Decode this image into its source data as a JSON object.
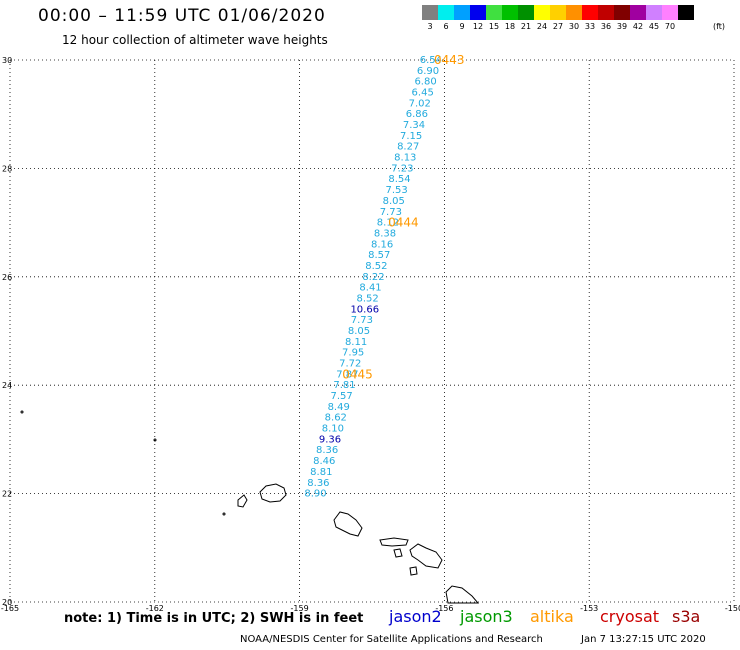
{
  "header": {
    "title": "00:00 – 11:59 UTC 01/06/2020",
    "subtitle": "12 hour collection of altimeter wave heights"
  },
  "legend": {
    "unit": "(ft)",
    "bins": [
      {
        "label": "3",
        "color": "#808080"
      },
      {
        "label": "6",
        "color": "#00eeee"
      },
      {
        "label": "9",
        "color": "#00a0ff"
      },
      {
        "label": "12",
        "color": "#0000ee"
      },
      {
        "label": "15",
        "color": "#40e040"
      },
      {
        "label": "18",
        "color": "#00c000"
      },
      {
        "label": "21",
        "color": "#009000"
      },
      {
        "label": "24",
        "color": "#ffff00"
      },
      {
        "label": "27",
        "color": "#ffd000"
      },
      {
        "label": "30",
        "color": "#ff9000"
      },
      {
        "label": "33",
        "color": "#ff0000"
      },
      {
        "label": "36",
        "color": "#c00000"
      },
      {
        "label": "39",
        "color": "#800000"
      },
      {
        "label": "42",
        "color": "#a000a0"
      },
      {
        "label": "45",
        "color": "#d080ff"
      },
      {
        "label": "70",
        "color": "#ff80ff"
      },
      {
        "label": "",
        "color": "#000000"
      }
    ]
  },
  "axes": {
    "lon_ticks": [
      "-165",
      "-162",
      "-159",
      "-156",
      "-153",
      "-150"
    ],
    "lat_ticks": [
      "20",
      "22",
      "24",
      "26",
      "28",
      "30"
    ],
    "lon_range": [
      -165,
      -150
    ],
    "lat_range": [
      20,
      30
    ]
  },
  "colors": {
    "jason2": "#0000cc",
    "jason3": "#009900",
    "altika": "#ff9900",
    "cryosat": "#cc0000",
    "s3a": "#990000",
    "swh_normal": "#22aadd",
    "swh_high": "#0000aa"
  },
  "track": {
    "points": [
      {
        "lon": -156.28,
        "lat": 30.0,
        "swh": "6.54",
        "high": false
      },
      {
        "lon": -156.34,
        "lat": 29.8,
        "swh": "6.90",
        "high": false
      },
      {
        "lon": -156.39,
        "lat": 29.6,
        "swh": "6.80",
        "high": false
      },
      {
        "lon": -156.45,
        "lat": 29.4,
        "swh": "6.45",
        "high": false
      },
      {
        "lon": -156.51,
        "lat": 29.2,
        "swh": "7.02",
        "high": false
      },
      {
        "lon": -156.57,
        "lat": 29.0,
        "swh": "6.86",
        "high": false
      },
      {
        "lon": -156.63,
        "lat": 28.8,
        "swh": "7.34",
        "high": false
      },
      {
        "lon": -156.69,
        "lat": 28.6,
        "swh": "7.15",
        "high": false
      },
      {
        "lon": -156.75,
        "lat": 28.4,
        "swh": "8.27",
        "high": false
      },
      {
        "lon": -156.81,
        "lat": 28.2,
        "swh": "8.13",
        "high": false
      },
      {
        "lon": -156.87,
        "lat": 28.0,
        "swh": "7.23",
        "high": false
      },
      {
        "lon": -156.93,
        "lat": 27.8,
        "swh": "8.54",
        "high": false
      },
      {
        "lon": -156.99,
        "lat": 27.6,
        "swh": "7.53",
        "high": false
      },
      {
        "lon": -157.05,
        "lat": 27.4,
        "swh": "8.05",
        "high": false
      },
      {
        "lon": -157.11,
        "lat": 27.2,
        "swh": "7.73",
        "high": false
      },
      {
        "lon": -157.17,
        "lat": 27.0,
        "swh": "8.12",
        "high": false
      },
      {
        "lon": -157.23,
        "lat": 26.8,
        "swh": "8.38",
        "high": false
      },
      {
        "lon": -157.29,
        "lat": 26.6,
        "swh": "8.16",
        "high": false
      },
      {
        "lon": -157.35,
        "lat": 26.4,
        "swh": "8.57",
        "high": false
      },
      {
        "lon": -157.41,
        "lat": 26.2,
        "swh": "8.52",
        "high": false
      },
      {
        "lon": -157.47,
        "lat": 26.0,
        "swh": "8.22",
        "high": false
      },
      {
        "lon": -157.53,
        "lat": 25.8,
        "swh": "8.41",
        "high": false
      },
      {
        "lon": -157.59,
        "lat": 25.6,
        "swh": "8.52",
        "high": false
      },
      {
        "lon": -157.65,
        "lat": 25.4,
        "swh": "10.66",
        "high": true
      },
      {
        "lon": -157.71,
        "lat": 25.2,
        "swh": "7.73",
        "high": false
      },
      {
        "lon": -157.77,
        "lat": 25.0,
        "swh": "8.05",
        "high": false
      },
      {
        "lon": -157.83,
        "lat": 24.8,
        "swh": "8.11",
        "high": false
      },
      {
        "lon": -157.89,
        "lat": 24.6,
        "swh": "7.95",
        "high": false
      },
      {
        "lon": -157.95,
        "lat": 24.4,
        "swh": "7.72",
        "high": false
      },
      {
        "lon": -158.01,
        "lat": 24.2,
        "swh": "7.87",
        "high": false
      },
      {
        "lon": -158.07,
        "lat": 24.0,
        "swh": "7.81",
        "high": false
      },
      {
        "lon": -158.13,
        "lat": 23.8,
        "swh": "7.57",
        "high": false
      },
      {
        "lon": -158.19,
        "lat": 23.6,
        "swh": "8.49",
        "high": false
      },
      {
        "lon": -158.25,
        "lat": 23.4,
        "swh": "8.62",
        "high": false
      },
      {
        "lon": -158.31,
        "lat": 23.2,
        "swh": "8.10",
        "high": false
      },
      {
        "lon": -158.37,
        "lat": 23.0,
        "swh": "9.36",
        "high": true
      },
      {
        "lon": -158.43,
        "lat": 22.8,
        "swh": "8.36",
        "high": false
      },
      {
        "lon": -158.49,
        "lat": 22.6,
        "swh": "8.46",
        "high": false
      },
      {
        "lon": -158.55,
        "lat": 22.4,
        "swh": "8.81",
        "high": false
      },
      {
        "lon": -158.61,
        "lat": 22.2,
        "swh": "8.36",
        "high": false
      },
      {
        "lon": -158.67,
        "lat": 22.0,
        "swh": "8.90",
        "high": false
      }
    ],
    "time_labels": [
      {
        "text": "0443",
        "lon": -155.9,
        "lat": 30.0
      },
      {
        "text": "0444",
        "lon": -156.85,
        "lat": 27.0
      },
      {
        "text": "0445",
        "lon": -157.8,
        "lat": 24.2
      }
    ]
  },
  "note": "note:  1) Time is in UTC;  2) SWH is in feet",
  "satellites": [
    {
      "key": "jason2",
      "label": "jason2"
    },
    {
      "key": "jason3",
      "label": "jason3"
    },
    {
      "key": "altika",
      "label": "altika"
    },
    {
      "key": "cryosat",
      "label": "cryosat"
    },
    {
      "key": "s3a",
      "label": "s3a"
    }
  ],
  "footer": {
    "credit": "NOAA/NESDIS Center for Satellite Applications and Research",
    "timestamp": "Jan  7 13:27:15 UTC 2020"
  }
}
